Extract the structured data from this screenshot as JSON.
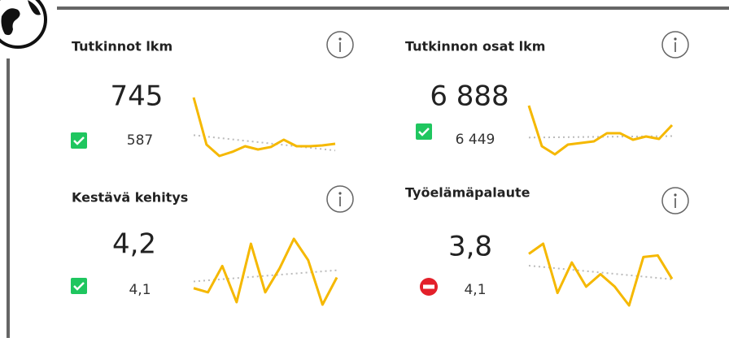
{
  "cards": [
    {
      "title": "Tutkinnot lkm",
      "value": "745",
      "comparison": "587",
      "status": "ok",
      "trend": [
        1400,
        675,
        500,
        563,
        650,
        600,
        638,
        750,
        650,
        650,
        663,
        688
      ]
    },
    {
      "title": "Tutkinnon osat lkm",
      "value": "6 888",
      "comparison": "6 449",
      "status": "ok",
      "trend": [
        9000,
        6500,
        6000,
        6600,
        6700,
        6800,
        7300,
        7300,
        6900,
        7100,
        6950,
        7800
      ]
    },
    {
      "title": "Kestävä kehitys",
      "value": "4,2",
      "comparison": "4,1",
      "status": "ok",
      "trend": [
        4.0,
        3.95,
        4.27,
        3.83,
        4.54,
        3.95,
        4.24,
        4.6,
        4.34,
        3.8,
        4.13
      ]
    },
    {
      "title": "Työelämäpalaute",
      "value": "3,8",
      "comparison": "4,1",
      "status": "bad",
      "trend": [
        4.27,
        4.4,
        3.77,
        4.16,
        3.85,
        4.01,
        3.85,
        3.61,
        4.23,
        4.25,
        3.95
      ]
    }
  ]
}
